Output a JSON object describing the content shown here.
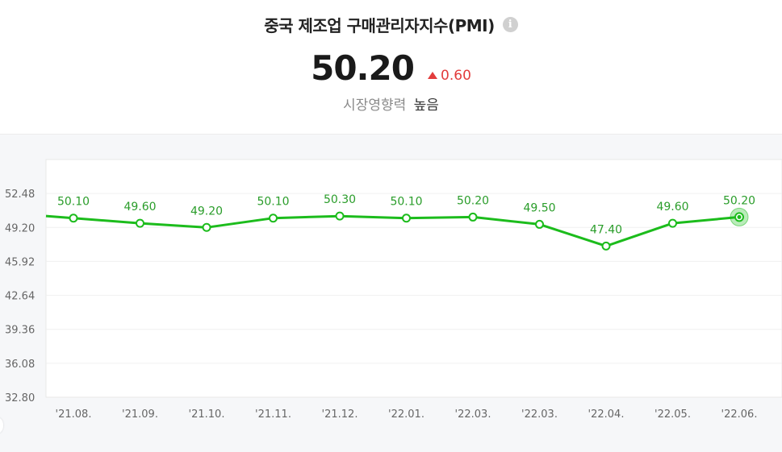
{
  "header": {
    "title": "중국 제조업 구매관리자지수(PMI)",
    "info_icon": "info-icon",
    "value": "50.20",
    "change": "0.60",
    "change_direction": "up",
    "influence_label": "시장영향력",
    "influence_value": "높음"
  },
  "colors": {
    "line": "#1cbc1c",
    "up": "#e23c3c",
    "label": "#2a9d2a"
  },
  "chart_data": {
    "type": "line",
    "title": "중국 제조업 구매관리자지수(PMI)",
    "categories": [
      "'21.08.",
      "'21.09.",
      "'21.10.",
      "'21.11.",
      "'21.12.",
      "'22.01.",
      "'22.03.",
      "'22.03.",
      "'22.04.",
      "'22.05.",
      "'22.06."
    ],
    "values": [
      50.1,
      49.6,
      49.2,
      50.1,
      50.3,
      50.1,
      50.2,
      49.5,
      47.4,
      49.6,
      50.2
    ],
    "value_labels": [
      "50.10",
      "49.60",
      "49.20",
      "50.10",
      "50.30",
      "50.10",
      "50.20",
      "49.50",
      "47.40",
      "49.60",
      "50.20"
    ],
    "yticks": [
      "52.48",
      "49.20",
      "45.92",
      "42.64",
      "39.36",
      "36.08",
      "32.80"
    ],
    "ylim": [
      32.8,
      55.76
    ],
    "grid": true,
    "highlight_last": true
  }
}
